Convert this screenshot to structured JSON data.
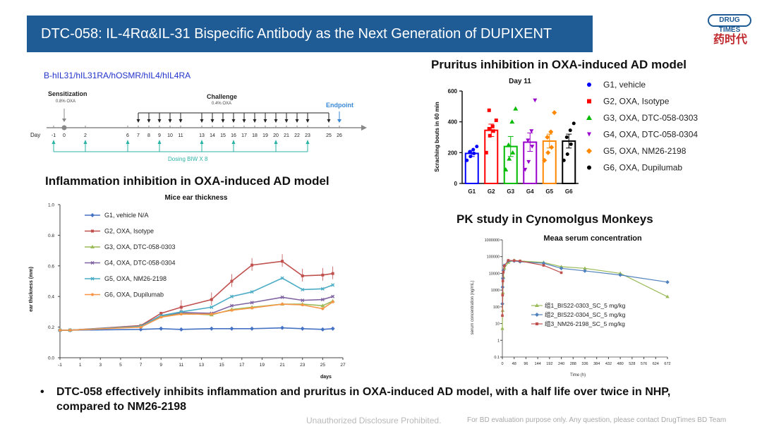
{
  "header": {
    "title": "DTC-058:  IL-4Rα&IL-31 Bispecific Antibody as the Next Generation of DUPIXENT",
    "logo_badge": "DRUG TIMES",
    "logo_cn": "药时代"
  },
  "schedule": {
    "model": "B-hIL31/hIL31RA/hOSMR/hIL4/hIL4RA",
    "sensitization_label": "Sensitization",
    "sensitization_dose": "0.8% OXA",
    "challenge_label": "Challenge",
    "challenge_dose": "0.4% OXA",
    "endpoint_label": "Endpoint",
    "axis_label": "Day",
    "days": [
      "-1",
      "0",
      "2",
      "6",
      "7",
      "8",
      "9",
      "10",
      "11",
      "13",
      "14",
      "15",
      "16",
      "17",
      "18",
      "19",
      "20",
      "21",
      "22",
      "23",
      "25",
      "26"
    ],
    "dosing_label": "Dosing BIW  X 8"
  },
  "inflammation": {
    "section_title": "Inflammation inhibition in OXA-induced AD model"
  },
  "pruritus": {
    "section_title": "Pruritus inhibition in OXA-induced AD model"
  },
  "pk": {
    "section_title": "PK study in Cynomolgus Monkeys"
  },
  "chart_data": [
    {
      "id": "ear",
      "type": "line",
      "title": "Mice ear thickness",
      "xlabel": "days",
      "ylabel": "ear thickness (mm)",
      "x": [
        -1,
        0,
        7,
        9,
        11,
        14,
        16,
        18,
        21,
        23,
        25,
        26
      ],
      "xticks": [
        "-1",
        "1",
        "3",
        "5",
        "7",
        "9",
        "11",
        "13",
        "15",
        "17",
        "19",
        "21",
        "23",
        "25",
        "27"
      ],
      "yticks": [
        "0.0",
        "0.2",
        "0.4",
        "0.6",
        "0.8",
        "1.0"
      ],
      "ylim": [
        0,
        1.0
      ],
      "series": [
        {
          "name": "G1, vehicle N/A",
          "color": "#4472c4",
          "marker": "diamond",
          "values": [
            0.18,
            0.18,
            0.185,
            0.19,
            0.185,
            0.19,
            0.19,
            0.19,
            0.195,
            0.19,
            0.185,
            0.19
          ]
        },
        {
          "name": "G2, OXA, Isotype",
          "color": "#c0504d",
          "marker": "square",
          "values": [
            0.18,
            0.18,
            0.21,
            0.29,
            0.33,
            0.38,
            0.5,
            0.605,
            0.63,
            0.535,
            0.54,
            0.55
          ]
        },
        {
          "name": "G3, OXA, DTC-058-0303",
          "color": "#9bbb59",
          "marker": "triangle",
          "values": [
            0.18,
            0.18,
            0.205,
            0.27,
            0.29,
            0.28,
            0.315,
            0.33,
            0.35,
            0.35,
            0.34,
            0.37
          ]
        },
        {
          "name": "G4, OXA, DTC-058-0304",
          "color": "#8064a2",
          "marker": "cross",
          "values": [
            0.18,
            0.18,
            0.205,
            0.275,
            0.295,
            0.29,
            0.34,
            0.36,
            0.395,
            0.375,
            0.38,
            0.4
          ]
        },
        {
          "name": "G5, OXA, NM26-2198",
          "color": "#4bacc6",
          "marker": "cross",
          "values": [
            0.18,
            0.18,
            0.205,
            0.275,
            0.3,
            0.33,
            0.4,
            0.43,
            0.52,
            0.445,
            0.45,
            0.475
          ]
        },
        {
          "name": "G6, OXA, Dupilumab",
          "color": "#f79646",
          "marker": "circle",
          "values": [
            0.18,
            0.18,
            0.2,
            0.265,
            0.285,
            0.285,
            0.31,
            0.325,
            0.35,
            0.345,
            0.32,
            0.365
          ]
        }
      ]
    },
    {
      "id": "itch",
      "type": "bar",
      "title": "Day 11",
      "ylabel": "Scraching bouts  in 60 min",
      "categories": [
        "G1",
        "G2",
        "G3",
        "G4",
        "G5",
        "G6"
      ],
      "values": [
        195,
        345,
        240,
        268,
        275,
        275
      ],
      "errors": [
        20,
        40,
        65,
        60,
        45,
        45
      ],
      "ylim": [
        0,
        600
      ],
      "yticks": [
        "0",
        "200",
        "400",
        "600"
      ],
      "colors": [
        "#0000ff",
        "#ff0000",
        "#00bb00",
        "#9900cc",
        "#ff8800",
        "#000000"
      ],
      "points": [
        [
          150,
          175,
          195,
          205,
          220,
          240
        ],
        [
          200,
          310,
          340,
          355,
          370,
          410,
          475
        ],
        [
          90,
          160,
          200,
          250,
          400,
          485
        ],
        [
          90,
          140,
          240,
          280,
          340,
          540
        ],
        [
          150,
          200,
          235,
          300,
          335,
          460
        ],
        [
          150,
          190,
          255,
          300,
          345,
          390
        ]
      ],
      "legend": [
        "G1, vehicle",
        "G2, OXA, Isotype",
        "G3, OXA, DTC-058-0303",
        "G4, OXA, DTC-058-0304",
        "G5, OXA, NM26-2198",
        "G6, OXA, Dupilumab"
      ]
    },
    {
      "id": "pk",
      "type": "line",
      "title": "Meaa serum concentration",
      "xlabel": "Time (h)",
      "ylabel": "serum concentration (ng/mL)",
      "yscale": "log",
      "ylim": [
        0.1,
        1000000
      ],
      "yticks": [
        "0.1",
        "1",
        "10",
        "100",
        "1000",
        "10000",
        "100000",
        "1000000"
      ],
      "xlim": [
        0,
        672
      ],
      "xticks": [
        "0",
        "48",
        "96",
        "144",
        "192",
        "240",
        "288",
        "336",
        "384",
        "432",
        "480",
        "528",
        "576",
        "624",
        "672"
      ],
      "series": [
        {
          "name": "组1_BIS22-0303_SC_5 mg/kg",
          "color": "#9bbb59",
          "marker": "triangle",
          "x": [
            0,
            1,
            2,
            4,
            8,
            24,
            48,
            72,
            168,
            240,
            336,
            480,
            672
          ],
          "values": [
            5,
            60,
            700,
            6000,
            20000,
            45000,
            60000,
            55000,
            45000,
            25000,
            20000,
            10000,
            400
          ]
        },
        {
          "name": "组2_BIS22-0304_SC_5 mg/kg",
          "color": "#4f81bd",
          "marker": "diamond",
          "x": [
            0,
            1,
            2,
            4,
            8,
            24,
            48,
            72,
            168,
            240,
            336,
            480,
            672
          ],
          "values": [
            150,
            1500,
            5000,
            15000,
            30000,
            55000,
            55000,
            50000,
            40000,
            20000,
            14000,
            8000,
            3000
          ]
        },
        {
          "name": "组3_NM26-2198_SC_5 mg/kg",
          "color": "#c0504d",
          "marker": "square",
          "x": [
            0,
            1,
            2,
            4,
            8,
            24,
            48,
            72,
            168,
            240
          ],
          "values": [
            30,
            500,
            3500,
            12000,
            28000,
            60000,
            58000,
            55000,
            30000,
            11000
          ]
        }
      ]
    }
  ],
  "bullet": {
    "text": "DTC-058 effectively inhibits inflammation and pruritus in OXA-induced AD model, with a half life over twice in NHP,  compared to NM26-2198"
  },
  "footer": {
    "disclaimer": "Unauthorized Disclosure Prohibited.",
    "contact": "For BD evaluation purpose only. Any question, please contact DrugTimes BD Team"
  }
}
